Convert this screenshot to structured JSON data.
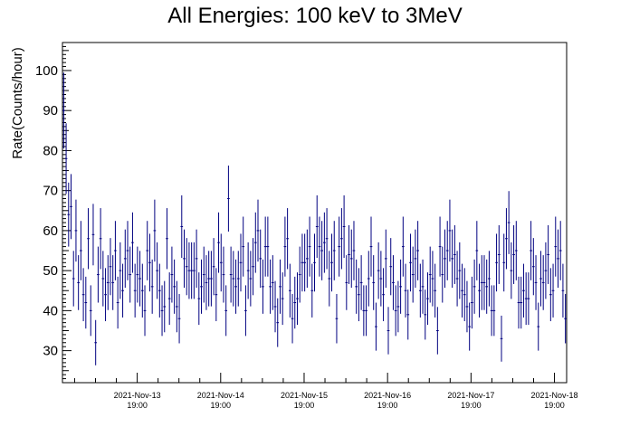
{
  "chart_data": {
    "type": "scatter",
    "title": "All Energies:  100 keV to 3MeV",
    "xlabel": "",
    "ylabel": "Rate(Counts/hour)",
    "ylim": [
      22,
      107
    ],
    "y_ticks": [
      30,
      40,
      50,
      60,
      70,
      80,
      90,
      100
    ],
    "x_ticks": [
      {
        "date": "2021-Nov-13",
        "time": "19:00"
      },
      {
        "date": "2021-Nov-14",
        "time": "19:00"
      },
      {
        "date": "2021-Nov-15",
        "time": "19:00"
      },
      {
        "date": "2021-Nov-16",
        "time": "19:00"
      },
      {
        "date": "2021-Nov-17",
        "time": "19:00"
      },
      {
        "date": "2021-Nov-18",
        "time": "19:00"
      }
    ],
    "x_start_hours_before_first_tick": 21.5,
    "x_range_hours": 145,
    "grid": false,
    "legend": "none",
    "colors": {
      "data": "#000080"
    },
    "series": [
      {
        "values": [
          90,
          78,
          64,
          66,
          48,
          60,
          47,
          55,
          44,
          42,
          58,
          40,
          59,
          32,
          49,
          58,
          48,
          44,
          47,
          51,
          47,
          55,
          42,
          50,
          45,
          53,
          55,
          49,
          57,
          45,
          49,
          48,
          45,
          40,
          55,
          52,
          46,
          60,
          50,
          45,
          40,
          41,
          58,
          43,
          49,
          46,
          41,
          38,
          61,
          53,
          51,
          50,
          50,
          50,
          53,
          43,
          46,
          49,
          47,
          48,
          48,
          51,
          44,
          57,
          52,
          49,
          40,
          68,
          49,
          48,
          46,
          48,
          52,
          56,
          40,
          50,
          48,
          51,
          57,
          60,
          53,
          46,
          56,
          56,
          46,
          47,
          41,
          37,
          46,
          43,
          56,
          58,
          45,
          38,
          42,
          43,
          49,
          52,
          52,
          53,
          56,
          45,
          52,
          61,
          56,
          55,
          57,
          58,
          48,
          52,
          55,
          38,
          56,
          58,
          61,
          47,
          54,
          53,
          55,
          46,
          44,
          47,
          40,
          40,
          48,
          56,
          47,
          36,
          50,
          48,
          44,
          53,
          35,
          51,
          47,
          40,
          41,
          46,
          56,
          45,
          39,
          52,
          49,
          53,
          55,
          45,
          46,
          39,
          43,
          49,
          48,
          45,
          35,
          56,
          49,
          53,
          55,
          60,
          53,
          54,
          48,
          50,
          45,
          44,
          41,
          36,
          42,
          46,
          55,
          45,
          47,
          47,
          46,
          48,
          40,
          40,
          52,
          54,
          33,
          52,
          58,
          62,
          50,
          54,
          55,
          42,
          42,
          45,
          43,
          43,
          55,
          51,
          47,
          36,
          48,
          47,
          50,
          54,
          44,
          45,
          56,
          53,
          55,
          45,
          38
        ]
      }
    ]
  }
}
